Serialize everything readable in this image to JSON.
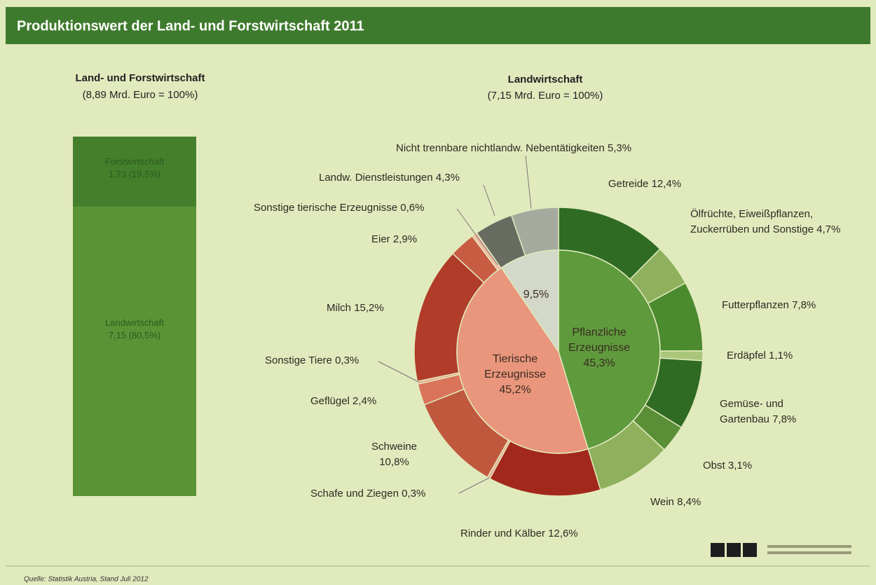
{
  "header": {
    "title": "Produktionswert der Land- und Forstwirtschaft 2011"
  },
  "footer": {
    "source": "Quelle: Statistik Austria, Stand Juli 2012"
  },
  "chart_data": [
    {
      "type": "stacked_bar",
      "title": "Land- und Forstwirtschaft",
      "subtitle": "(8,89 Mrd. Euro = 100%)",
      "series": [
        {
          "name": "Forstwirtschaft",
          "color": "#447f2c",
          "values": [
            1.73
          ],
          "value_labels": [
            "1,73 (19,5%)"
          ]
        },
        {
          "name": "Landwirtschaft",
          "color": "#5a9336",
          "values": [
            7.15
          ],
          "value_labels": [
            "7,15 (80,5%)"
          ]
        }
      ]
    },
    {
      "type": "sunburst",
      "title": "Landwirtschaft",
      "subtitle": "(7,15 Mrd. Euro = 100%)",
      "inner": {
        "categories": [
          "Pflanzliche Erzeugnisse",
          "Tierische Erzeugnisse",
          null
        ],
        "values": [
          45.3,
          45.2,
          9.5
        ],
        "value_labels": [
          "45,3%",
          "45,2%",
          "9,5%"
        ],
        "colors": [
          "#5f9b3d",
          "#e9967c",
          "#d3d8c8"
        ]
      },
      "outer": {
        "categories": [
          "Getreide",
          "Ölfrüchte, Eiweißpflanzen, Zuckerrüben und Sonstige",
          "Futterpflanzen",
          "Erdäpfel",
          "Gemüse- und Gartenbau",
          "Obst",
          "Wein",
          "Rinder und Kälber",
          "Schafe und Ziegen",
          "Schweine",
          "Geflügel",
          "Sonstige Tiere",
          "Milch",
          "Eier",
          "Sonstige tierische Erzeugnisse",
          "Landw. Dienstleistungen",
          "Nicht trennbare nichtlandw. Nebentätigkeiten"
        ],
        "values": [
          12.4,
          4.7,
          7.8,
          1.1,
          7.8,
          3.1,
          8.4,
          12.6,
          0.3,
          10.8,
          2.4,
          0.3,
          15.2,
          2.9,
          0.6,
          4.3,
          5.3
        ],
        "value_labels": [
          "12,4%",
          "4,7%",
          "7,8%",
          "1,1%",
          "7,8%",
          "3,1%",
          "8,4%",
          "12,6%",
          "0,3%",
          "10,8%",
          "2,4%",
          "0,3%",
          "15,2%",
          "2,9%",
          "0,6%",
          "4,3%",
          "5,3%"
        ],
        "colors": [
          "#2f6b23",
          "#8fb05c",
          "#4b8a2f",
          "#a9c67a",
          "#2f6b23",
          "#5a8f37",
          "#8fb05c",
          "#a3281c",
          "#eba58e",
          "#c0583e",
          "#d9745a",
          "#eba58e",
          "#b13c2a",
          "#c85c42",
          "#f2bca4",
          "#676b60",
          "#a6aa9e"
        ]
      }
    }
  ]
}
